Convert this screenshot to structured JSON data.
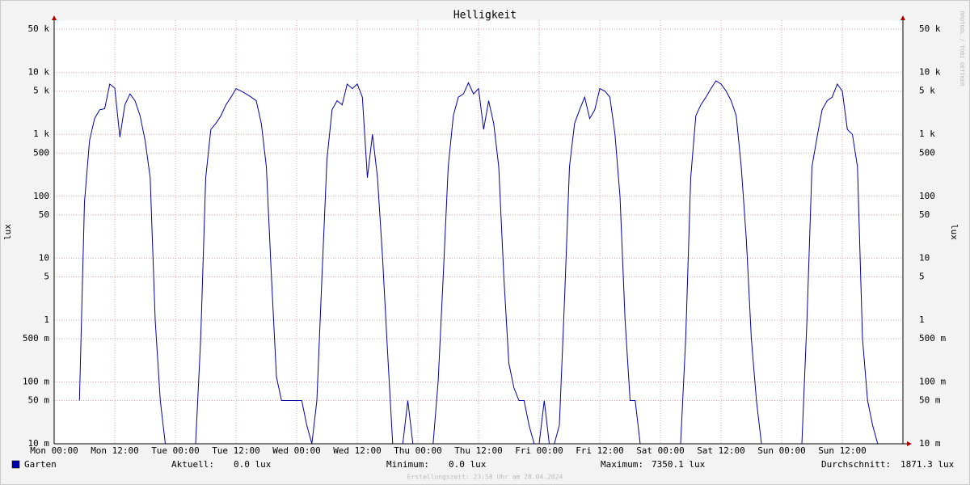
{
  "chart_data": {
    "type": "line",
    "title": "Helligkeit",
    "y_label": "lux",
    "y2_label": "lux",
    "watermark": "RRDTOOL / TOBI OETIKER",
    "footer": "Erstellungszeit: 23:58 Uhr am 28.04.2024",
    "log_scale": true,
    "grid": true,
    "xlim": [
      0,
      168
    ],
    "xticks": [
      {
        "value": 0,
        "label": "Mon 00:00"
      },
      {
        "value": 12,
        "label": "Mon 12:00"
      },
      {
        "value": 24,
        "label": "Tue 00:00"
      },
      {
        "value": 36,
        "label": "Tue 12:00"
      },
      {
        "value": 48,
        "label": "Wed 00:00"
      },
      {
        "value": 60,
        "label": "Wed 12:00"
      },
      {
        "value": 72,
        "label": "Thu 00:00"
      },
      {
        "value": 84,
        "label": "Thu 12:00"
      },
      {
        "value": 96,
        "label": "Fri 00:00"
      },
      {
        "value": 108,
        "label": "Fri 12:00"
      },
      {
        "value": 120,
        "label": "Sat 00:00"
      },
      {
        "value": 132,
        "label": "Sat 12:00"
      },
      {
        "value": 144,
        "label": "Sun 00:00"
      },
      {
        "value": 156,
        "label": "Sun 12:00"
      }
    ],
    "ylim": [
      0.01,
      70000
    ],
    "yticks": [
      {
        "value": 0.01,
        "label": "10 m"
      },
      {
        "value": 0.05,
        "label": "50 m"
      },
      {
        "value": 0.1,
        "label": "100 m"
      },
      {
        "value": 0.5,
        "label": "500 m"
      },
      {
        "value": 1,
        "label": "1"
      },
      {
        "value": 5,
        "label": "5"
      },
      {
        "value": 10,
        "label": "10"
      },
      {
        "value": 50,
        "label": "50"
      },
      {
        "value": 100,
        "label": "100"
      },
      {
        "value": 500,
        "label": "500"
      },
      {
        "value": 1000,
        "label": "1 k"
      },
      {
        "value": 5000,
        "label": "5 k"
      },
      {
        "value": 10000,
        "label": "10 k"
      },
      {
        "value": 50000,
        "label": "50 k"
      }
    ],
    "x": [
      0,
      1,
      2,
      3,
      4,
      5,
      6,
      7,
      8,
      9,
      10,
      11,
      12,
      13,
      14,
      15,
      16,
      17,
      18,
      19,
      20,
      21,
      22,
      23,
      24,
      25,
      26,
      27,
      28,
      29,
      30,
      31,
      32,
      33,
      34,
      35,
      36,
      37,
      38,
      39,
      40,
      41,
      42,
      43,
      44,
      45,
      46,
      47,
      48,
      49,
      50,
      51,
      52,
      53,
      54,
      55,
      56,
      57,
      58,
      59,
      60,
      61,
      62,
      63,
      64,
      65,
      66,
      67,
      68,
      69,
      70,
      71,
      72,
      73,
      74,
      75,
      76,
      77,
      78,
      79,
      80,
      81,
      82,
      83,
      84,
      85,
      86,
      87,
      88,
      89,
      90,
      91,
      92,
      93,
      94,
      95,
      96,
      97,
      98,
      99,
      100,
      101,
      102,
      103,
      104,
      105,
      106,
      107,
      108,
      109,
      110,
      111,
      112,
      113,
      114,
      115,
      116,
      117,
      118,
      119,
      120,
      121,
      122,
      123,
      124,
      125,
      126,
      127,
      128,
      129,
      130,
      131,
      132,
      133,
      134,
      135,
      136,
      137,
      138,
      139,
      140,
      141,
      142,
      143,
      144,
      145,
      146,
      147,
      148,
      149,
      150,
      151,
      152,
      153,
      154,
      155,
      156,
      157,
      158,
      159,
      160,
      161,
      162,
      163,
      164,
      165,
      166,
      167,
      168
    ],
    "series": [
      {
        "name": "Garten",
        "color": "#0000aa",
        "values": [
          null,
          null,
          null,
          null,
          null,
          0.05,
          80,
          800,
          1800,
          2500,
          2600,
          6500,
          5600,
          900,
          3000,
          4500,
          3500,
          2000,
          800,
          200,
          1,
          0.05,
          0.01,
          0.01,
          0.01,
          0.01,
          0.01,
          0.01,
          0.01,
          0.5,
          200,
          1200,
          1500,
          2000,
          3000,
          4000,
          5500,
          5000,
          4500,
          4000,
          3500,
          1500,
          300,
          5,
          0.12,
          0.05,
          0.05,
          0.05,
          0.05,
          0.05,
          0.02,
          0.01,
          0.05,
          5,
          400,
          2500,
          3500,
          3000,
          6500,
          5500,
          6500,
          4000,
          200,
          1000,
          200,
          10,
          0.3,
          0.01,
          0.01,
          0.01,
          0.05,
          0.01,
          0.01,
          0.01,
          0.01,
          0.01,
          0.1,
          5,
          300,
          2000,
          4000,
          4500,
          6800,
          4500,
          5500,
          1200,
          3500,
          1500,
          300,
          5,
          0.2,
          0.08,
          0.05,
          0.05,
          0.02,
          0.01,
          0.01,
          0.05,
          0.01,
          0.01,
          0.02,
          2,
          300,
          1500,
          2500,
          4000,
          1800,
          2500,
          5500,
          5000,
          4000,
          1000,
          100,
          1,
          0.05,
          0.05,
          0.01,
          0.01,
          0.01,
          0.01,
          0.01,
          0.01,
          0.01,
          0.01,
          0.01,
          0.5,
          200,
          2000,
          3000,
          4000,
          5500,
          7350,
          6500,
          5000,
          3500,
          2000,
          300,
          20,
          0.5,
          0.05,
          0.01,
          0.01,
          null,
          null,
          null,
          null,
          null,
          null,
          0.01,
          1,
          300,
          900,
          2500,
          3500,
          4000,
          6500,
          5000,
          1200,
          1000,
          300,
          0.5,
          0.05,
          0.02,
          0.01,
          0.01,
          0.01,
          0.01,
          0.01,
          0.01
        ]
      }
    ],
    "legend_stats": [
      {
        "label": "Aktuell:",
        "value": "0.0 lux"
      },
      {
        "label": "Minimum:",
        "value": "0.0 lux"
      },
      {
        "label": "Maximum:",
        "value": "7350.1 lux"
      },
      {
        "label": "Durchschnitt:",
        "value": "1871.3 lux"
      }
    ]
  }
}
